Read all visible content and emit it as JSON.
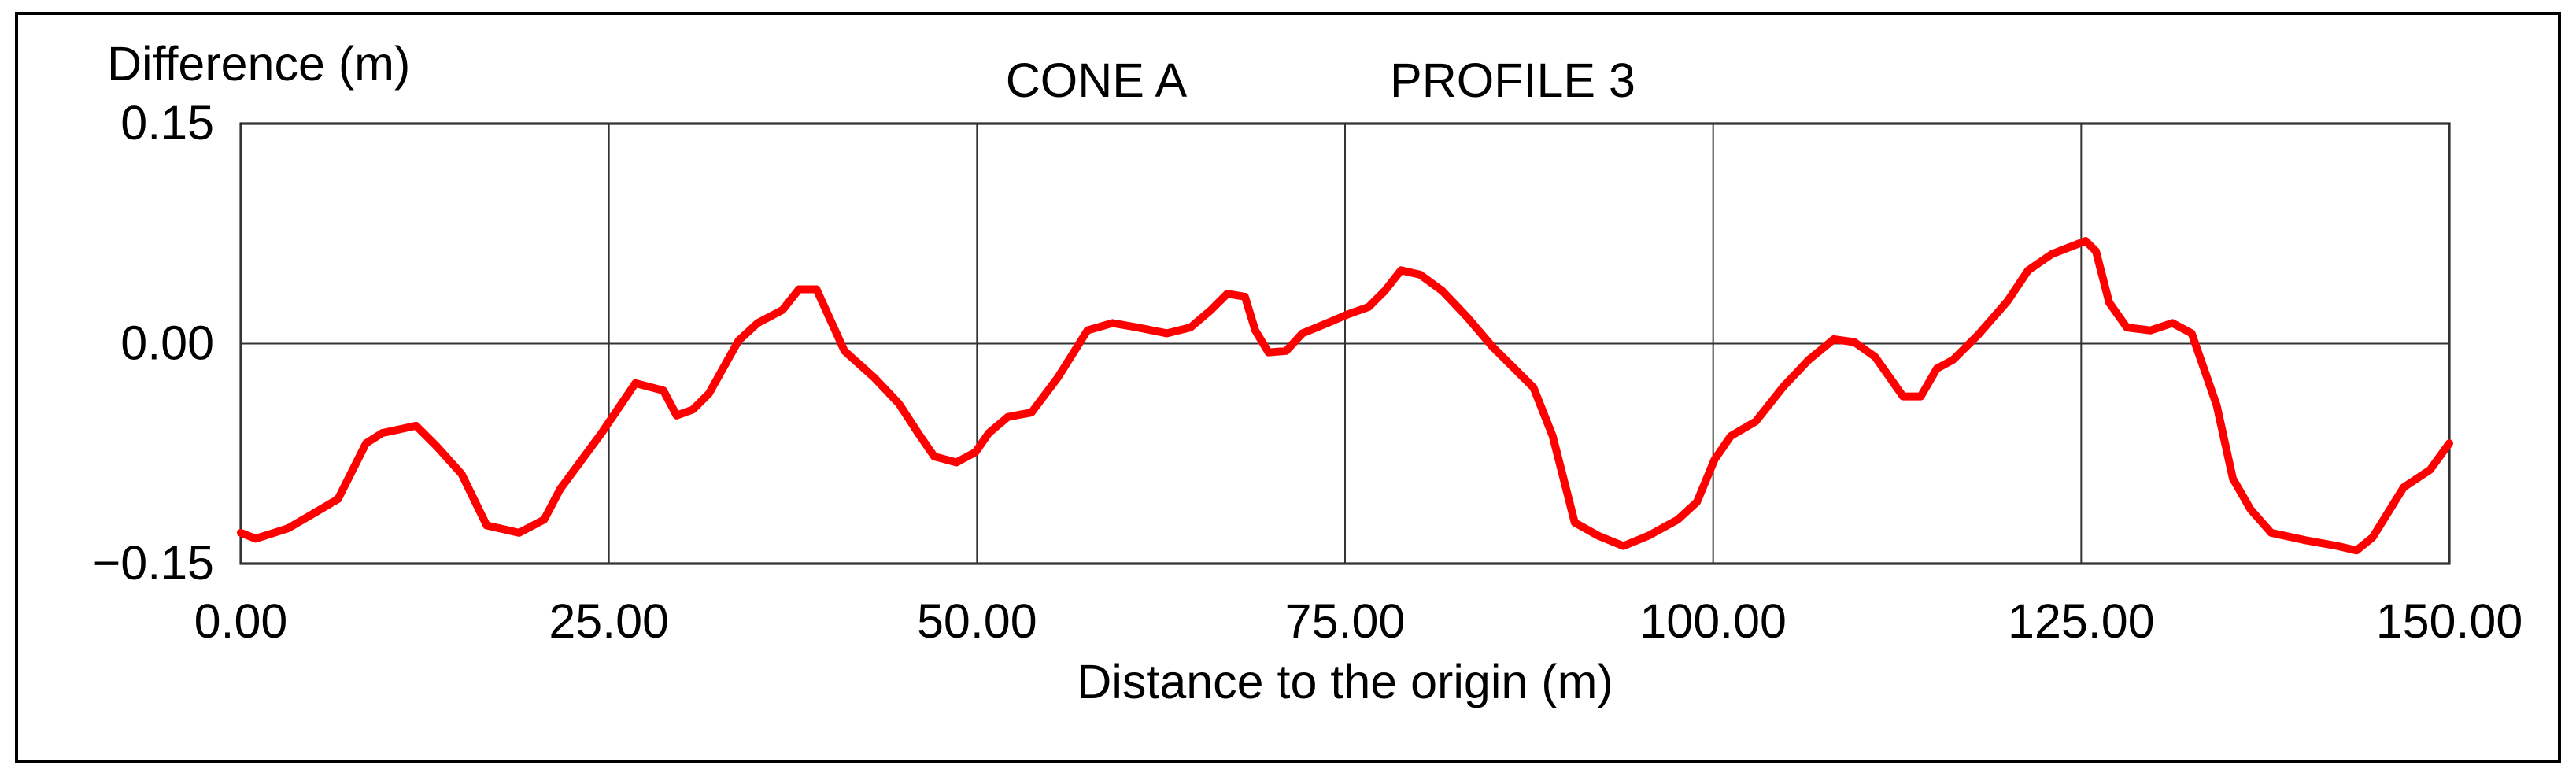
{
  "chart_data": {
    "type": "line",
    "title": "CONE A",
    "subtitle": "PROFILE 3",
    "y_label": "Difference (m)",
    "x_label": "Distance to the origin (m)",
    "color": "#ff0000",
    "grid": true,
    "xlim": [
      0,
      150
    ],
    "xticks": [
      {
        "value": 0,
        "label": "0.00"
      },
      {
        "value": 25,
        "label": "25.00"
      },
      {
        "value": 50,
        "label": "50.00"
      },
      {
        "value": 75,
        "label": "75.00"
      },
      {
        "value": 100,
        "label": "100.00"
      },
      {
        "value": 125,
        "label": "125.00"
      },
      {
        "value": 150,
        "label": "150.00"
      }
    ],
    "ylim": [
      -0.15,
      0.15
    ],
    "yticks": [
      {
        "value": -0.15,
        "label": "−0.15"
      },
      {
        "value": 0,
        "label": "0.00"
      },
      {
        "value": 0.15,
        "label": "0.15"
      }
    ],
    "x": [
      0,
      1.0,
      3.2,
      6.6,
      8.5,
      9.6,
      11.9,
      13.3,
      15.0,
      16.7,
      18.9,
      20.6,
      21.7,
      24.5,
      26.8,
      28.7,
      29.6,
      30.7,
      31.8,
      33.8,
      35.1,
      36.8,
      37.9,
      39.1,
      41.0,
      43.0,
      44.7,
      46.0,
      47.1,
      48.6,
      49.9,
      50.8,
      52.1,
      53.7,
      55.5,
      57.5,
      59.2,
      60.9,
      62.9,
      64.5,
      65.9,
      67.0,
      68.2,
      68.9,
      69.8,
      71.0,
      72.1,
      73.8,
      75.2,
      76.6,
      77.7,
      78.8,
      80.1,
      81.6,
      83.3,
      85.0,
      86.4,
      87.8,
      89.1,
      90.6,
      92.2,
      93.9,
      95.6,
      97.6,
      98.9,
      100.1,
      101.2,
      102.9,
      104.8,
      106.5,
      108.2,
      109.6,
      111.0,
      112.9,
      114.1,
      115.2,
      116.3,
      118.0,
      120.0,
      121.4,
      123.0,
      125.3,
      126.0,
      126.9,
      128.1,
      129.7,
      131.2,
      132.5,
      134.2,
      135.3,
      136.5,
      137.9,
      140.2,
      142.4,
      143.7,
      144.8,
      146.9,
      148.7,
      150.0
    ],
    "values": [
      -0.129,
      -0.133,
      -0.126,
      -0.106,
      -0.068,
      -0.061,
      -0.056,
      -0.07,
      -0.089,
      -0.124,
      -0.129,
      -0.12,
      -0.099,
      -0.061,
      -0.027,
      -0.032,
      -0.049,
      -0.045,
      -0.034,
      0.002,
      0.014,
      0.023,
      0.037,
      0.037,
      -0.005,
      -0.023,
      -0.041,
      -0.061,
      -0.077,
      -0.081,
      -0.074,
      -0.061,
      -0.05,
      -0.047,
      -0.023,
      0.009,
      0.014,
      0.011,
      0.007,
      0.011,
      0.023,
      0.034,
      0.032,
      0.009,
      -0.006,
      -0.005,
      0.007,
      0.014,
      0.02,
      0.025,
      0.036,
      0.05,
      0.047,
      0.036,
      0.018,
      -0.002,
      -0.016,
      -0.03,
      -0.063,
      -0.122,
      -0.131,
      -0.138,
      -0.131,
      -0.12,
      -0.108,
      -0.079,
      -0.063,
      -0.053,
      -0.029,
      -0.011,
      0.003,
      0.001,
      -0.009,
      -0.036,
      -0.036,
      -0.017,
      -0.011,
      0.006,
      0.029,
      0.05,
      0.061,
      0.07,
      0.063,
      0.028,
      0.011,
      0.009,
      0.014,
      0.007,
      -0.042,
      -0.092,
      -0.113,
      -0.129,
      -0.134,
      -0.138,
      -0.141,
      -0.132,
      -0.098,
      -0.086,
      -0.068
    ]
  }
}
